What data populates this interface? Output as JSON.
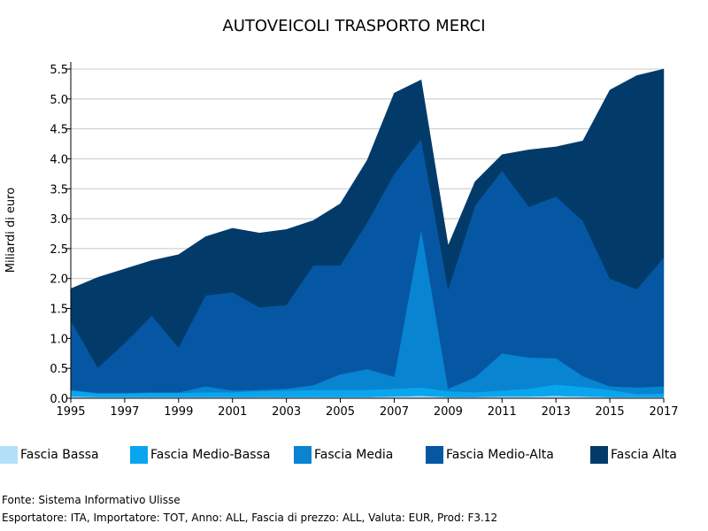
{
  "chart_data": {
    "type": "area",
    "stacked": true,
    "title": "AUTOVEICOLI TRASPORTO MERCI",
    "xlabel": "",
    "ylabel": "Miliardi di euro",
    "x": [
      1995,
      1996,
      1997,
      1998,
      1999,
      2000,
      2001,
      2002,
      2003,
      2004,
      2005,
      2006,
      2007,
      2008,
      2009,
      2010,
      2011,
      2012,
      2013,
      2014,
      2015,
      2016,
      2017
    ],
    "xticks": [
      "1995",
      "1997",
      "1999",
      "2001",
      "2003",
      "2005",
      "2007",
      "2009",
      "2011",
      "2013",
      "2015",
      "2017"
    ],
    "ylim": [
      0,
      5.5
    ],
    "yticks": [
      "0.0",
      "0.5",
      "1.0",
      "1.5",
      "2.0",
      "2.5",
      "3.0",
      "3.5",
      "4.0",
      "4.5",
      "5.0",
      "5.5"
    ],
    "grid": true,
    "legend_position": "bottom",
    "series": [
      {
        "name": "Fascia Bassa",
        "color": "#b3e0f7",
        "values": [
          0.03,
          0.02,
          0.02,
          0.02,
          0.02,
          0.02,
          0.02,
          0.02,
          0.02,
          0.02,
          0.02,
          0.02,
          0.03,
          0.04,
          0.02,
          0.02,
          0.03,
          0.03,
          0.04,
          0.03,
          0.02,
          0.02,
          0.02
        ]
      },
      {
        "name": "Fascia Medio-Bassa",
        "color": "#0aa5ef",
        "values": [
          0.1,
          0.06,
          0.06,
          0.07,
          0.07,
          0.08,
          0.08,
          0.1,
          0.11,
          0.12,
          0.12,
          0.12,
          0.13,
          0.14,
          0.1,
          0.08,
          0.1,
          0.13,
          0.19,
          0.16,
          0.12,
          0.05,
          0.06
        ]
      },
      {
        "name": "Fascia Media",
        "color": "#0884d1",
        "values": [
          0.01,
          0.01,
          0.01,
          0.01,
          0.01,
          0.1,
          0.03,
          0.02,
          0.03,
          0.08,
          0.26,
          0.35,
          0.2,
          2.65,
          0.04,
          0.25,
          0.62,
          0.52,
          0.44,
          0.18,
          0.06,
          0.11,
          0.12
        ]
      },
      {
        "name": "Fascia Medio-Alta",
        "color": "#0557a3",
        "values": [
          1.16,
          0.42,
          0.83,
          1.28,
          0.75,
          1.52,
          1.64,
          1.38,
          1.4,
          2.0,
          1.82,
          2.45,
          3.39,
          1.5,
          1.66,
          2.87,
          3.05,
          2.52,
          2.7,
          2.59,
          1.8,
          1.64,
          2.15
        ]
      },
      {
        "name": "Fascia Alta",
        "color": "#023b6a",
        "values": [
          0.53,
          1.51,
          1.24,
          0.92,
          1.55,
          0.98,
          1.07,
          1.24,
          1.26,
          0.75,
          1.03,
          1.04,
          1.35,
          0.99,
          0.73,
          0.4,
          0.27,
          0.95,
          0.83,
          1.34,
          3.15,
          3.57,
          3.15
        ]
      }
    ]
  },
  "footer": {
    "source": "Fonte: Sistema Informativo Ulisse",
    "filters": "Esportatore: ITA, Importatore: TOT, Anno: ALL, Fascia di prezzo: ALL, Valuta: EUR, Prod: F3.12"
  }
}
